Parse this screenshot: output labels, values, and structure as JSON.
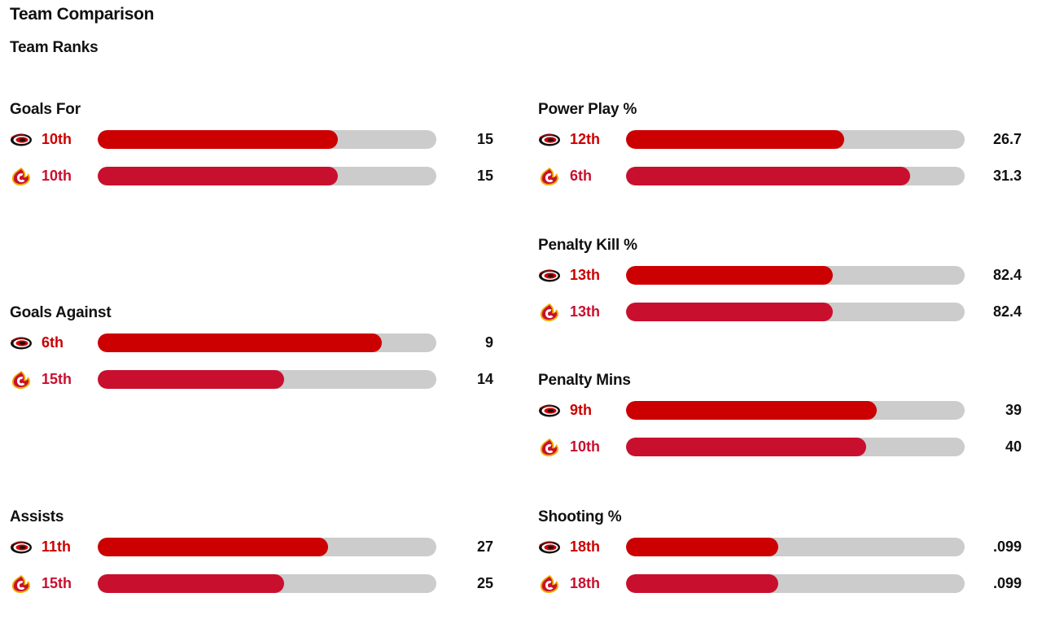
{
  "header": {
    "title": "Team Comparison",
    "subtitle": "Team Ranks"
  },
  "colors": {
    "hurricanes_bar": "#cc0000",
    "flames_bar": "#c8102e",
    "track": "#cccccc"
  },
  "teams": {
    "home": {
      "icon": "hurricanes-logo-icon"
    },
    "away": {
      "icon": "flames-logo-icon"
    }
  },
  "stats": [
    {
      "title": "Goals For",
      "home": {
        "rank": "10th",
        "value": "15",
        "fill": 0.71
      },
      "away": {
        "rank": "10th",
        "value": "15",
        "fill": 0.71
      }
    },
    {
      "title": "Goals Against",
      "home": {
        "rank": "6th",
        "value": "9",
        "fill": 0.84
      },
      "away": {
        "rank": "15th",
        "value": "14",
        "fill": 0.55
      }
    },
    {
      "title": "Assists",
      "home": {
        "rank": "11th",
        "value": "27",
        "fill": 0.68
      },
      "away": {
        "rank": "15th",
        "value": "25",
        "fill": 0.55
      }
    },
    {
      "title": "Power Play %",
      "home": {
        "rank": "12th",
        "value": "26.7",
        "fill": 0.645
      },
      "away": {
        "rank": "6th",
        "value": "31.3",
        "fill": 0.84
      }
    },
    {
      "title": "Penalty Kill %",
      "home": {
        "rank": "13th",
        "value": "82.4",
        "fill": 0.61
      },
      "away": {
        "rank": "13th",
        "value": "82.4",
        "fill": 0.61
      }
    },
    {
      "title": "Penalty Mins",
      "home": {
        "rank": "9th",
        "value": "39",
        "fill": 0.74
      },
      "away": {
        "rank": "10th",
        "value": "40",
        "fill": 0.71
      }
    },
    {
      "title": "Shooting %",
      "home": {
        "rank": "18th",
        "value": ".099",
        "fill": 0.45
      },
      "away": {
        "rank": "18th",
        "value": ".099",
        "fill": 0.45
      }
    }
  ]
}
